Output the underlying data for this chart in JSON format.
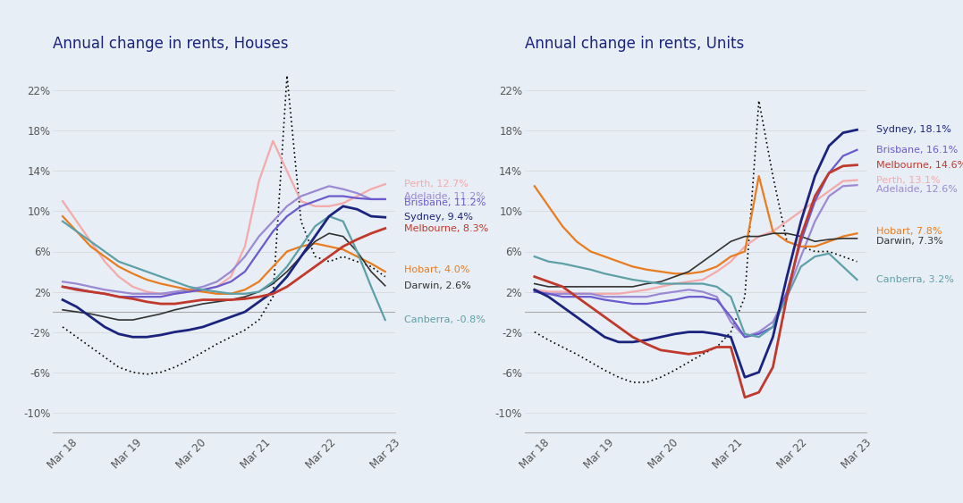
{
  "title_houses": "Annual change in rents, Houses",
  "title_units": "Annual change in rents, Units",
  "bg_color": "#e8eef5",
  "x_labels": [
    "Mar 18",
    "Mar 19",
    "Mar 20",
    "Mar 21",
    "Mar 22",
    "Mar 23"
  ],
  "yticks": [
    -10,
    -6,
    -2,
    2,
    6,
    10,
    14,
    18,
    22
  ],
  "ylim": [
    -12,
    25
  ],
  "colors": {
    "Sydney": "#1a237e",
    "Melbourne": "#c0392b",
    "Brisbane": "#6a5acd",
    "Adelaide": "#9b89d4",
    "Perth": "#f4aaaa",
    "Hobart": "#e87c1e",
    "Darwin": "#333333",
    "Canberra": "#5da0a8",
    "National": "#000000"
  },
  "houses": {
    "Sydney": [
      1.2,
      0.5,
      -0.5,
      -1.5,
      -2.2,
      -2.5,
      -2.5,
      -2.3,
      -2.0,
      -1.8,
      -1.5,
      -1.0,
      -0.5,
      0.0,
      1.0,
      2.0,
      3.5,
      5.5,
      7.5,
      9.5,
      10.5,
      10.2,
      9.5,
      9.4
    ],
    "Melbourne": [
      2.5,
      2.2,
      2.0,
      1.8,
      1.5,
      1.3,
      1.0,
      0.8,
      0.8,
      1.0,
      1.2,
      1.2,
      1.2,
      1.3,
      1.5,
      1.8,
      2.5,
      3.5,
      4.5,
      5.5,
      6.5,
      7.2,
      7.8,
      8.3
    ],
    "Brisbane": [
      2.5,
      2.3,
      2.0,
      1.8,
      1.5,
      1.5,
      1.5,
      1.5,
      1.8,
      2.0,
      2.2,
      2.5,
      3.0,
      4.0,
      6.0,
      8.0,
      9.5,
      10.5,
      11.0,
      11.5,
      11.5,
      11.3,
      11.2,
      11.2
    ],
    "Adelaide": [
      3.0,
      2.8,
      2.5,
      2.2,
      2.0,
      1.8,
      1.8,
      1.8,
      2.0,
      2.2,
      2.5,
      3.0,
      4.0,
      5.5,
      7.5,
      9.0,
      10.5,
      11.5,
      12.0,
      12.5,
      12.2,
      11.8,
      11.2,
      11.2
    ],
    "Perth": [
      11.0,
      9.0,
      7.0,
      5.0,
      3.5,
      2.5,
      2.0,
      1.8,
      1.8,
      2.0,
      2.2,
      2.5,
      3.5,
      6.5,
      13.0,
      17.0,
      14.0,
      11.0,
      10.5,
      10.5,
      10.8,
      11.5,
      12.2,
      12.7
    ],
    "Hobart": [
      9.5,
      8.0,
      6.5,
      5.5,
      4.5,
      3.8,
      3.2,
      2.8,
      2.5,
      2.2,
      2.0,
      1.8,
      1.8,
      2.2,
      3.0,
      4.5,
      6.0,
      6.5,
      6.8,
      6.5,
      6.2,
      5.5,
      4.8,
      4.0
    ],
    "Darwin": [
      0.2,
      0.0,
      -0.2,
      -0.5,
      -0.8,
      -0.8,
      -0.5,
      -0.2,
      0.2,
      0.5,
      0.8,
      1.0,
      1.2,
      1.5,
      2.0,
      2.8,
      4.0,
      5.5,
      7.0,
      7.8,
      7.5,
      6.0,
      4.0,
      2.6
    ],
    "Canberra": [
      9.0,
      8.0,
      7.0,
      6.0,
      5.0,
      4.5,
      4.0,
      3.5,
      3.0,
      2.5,
      2.2,
      2.0,
      1.8,
      1.8,
      2.0,
      3.0,
      4.5,
      6.5,
      8.5,
      9.5,
      9.0,
      6.0,
      2.5,
      -0.8
    ],
    "National": [
      -1.5,
      -2.5,
      -3.5,
      -4.5,
      -5.5,
      -6.0,
      -6.2,
      -6.0,
      -5.5,
      -4.8,
      -4.0,
      -3.2,
      -2.5,
      -1.8,
      -0.8,
      1.5,
      23.5,
      9.0,
      5.5,
      5.0,
      5.5,
      5.0,
      4.5,
      3.5
    ]
  },
  "units": {
    "Sydney": [
      2.2,
      1.5,
      0.5,
      -0.5,
      -1.5,
      -2.5,
      -3.0,
      -3.0,
      -2.8,
      -2.5,
      -2.2,
      -2.0,
      -2.0,
      -2.2,
      -2.5,
      -6.5,
      -6.0,
      -2.5,
      3.5,
      9.0,
      13.5,
      16.5,
      17.8,
      18.1
    ],
    "Melbourne": [
      3.5,
      3.0,
      2.5,
      1.5,
      0.5,
      -0.5,
      -1.5,
      -2.5,
      -3.2,
      -3.8,
      -4.0,
      -4.2,
      -4.0,
      -3.5,
      -3.5,
      -8.5,
      -8.0,
      -5.5,
      1.5,
      7.5,
      11.5,
      13.8,
      14.5,
      14.6
    ],
    "Brisbane": [
      2.0,
      1.8,
      1.5,
      1.5,
      1.5,
      1.2,
      1.0,
      0.8,
      0.8,
      1.0,
      1.2,
      1.5,
      1.5,
      1.2,
      -0.5,
      -2.5,
      -2.2,
      -1.5,
      2.0,
      7.0,
      11.0,
      13.8,
      15.5,
      16.1
    ],
    "Adelaide": [
      2.0,
      1.8,
      1.8,
      1.8,
      1.8,
      1.5,
      1.5,
      1.5,
      1.5,
      1.8,
      2.0,
      2.2,
      2.0,
      1.5,
      -1.0,
      -2.5,
      -2.0,
      -1.0,
      1.8,
      5.5,
      9.0,
      11.5,
      12.5,
      12.6
    ],
    "Perth": [
      2.2,
      2.0,
      2.0,
      1.8,
      1.8,
      1.8,
      1.8,
      2.0,
      2.2,
      2.5,
      2.8,
      3.0,
      3.2,
      4.0,
      5.0,
      6.5,
      7.5,
      8.0,
      9.0,
      10.0,
      11.0,
      12.0,
      13.0,
      13.1
    ],
    "Hobart": [
      12.5,
      10.5,
      8.5,
      7.0,
      6.0,
      5.5,
      5.0,
      4.5,
      4.2,
      4.0,
      3.8,
      3.8,
      4.0,
      4.5,
      5.5,
      6.0,
      13.5,
      8.0,
      7.0,
      6.5,
      6.5,
      7.0,
      7.5,
      7.8
    ],
    "Darwin": [
      2.8,
      2.5,
      2.5,
      2.5,
      2.5,
      2.5,
      2.5,
      2.5,
      2.8,
      3.0,
      3.5,
      4.0,
      5.0,
      6.0,
      7.0,
      7.5,
      7.5,
      7.8,
      7.8,
      7.5,
      7.0,
      7.2,
      7.3,
      7.3
    ],
    "Canberra": [
      5.5,
      5.0,
      4.8,
      4.5,
      4.2,
      3.8,
      3.5,
      3.2,
      3.0,
      2.8,
      2.8,
      2.8,
      2.8,
      2.5,
      1.5,
      -2.2,
      -2.5,
      -1.5,
      1.5,
      4.5,
      5.5,
      5.8,
      4.5,
      3.2
    ],
    "National": [
      -2.0,
      -2.8,
      -3.5,
      -4.2,
      -5.0,
      -5.8,
      -6.5,
      -7.0,
      -7.0,
      -6.5,
      -5.8,
      -5.0,
      -4.2,
      -3.5,
      -2.0,
      1.5,
      21.0,
      13.5,
      7.0,
      6.5,
      6.0,
      6.0,
      5.5,
      5.0
    ]
  },
  "houses_labels": [
    {
      "text": "Perth, 12.7%",
      "color": "#f4aaaa",
      "y": 12.7
    },
    {
      "text": "Adelaide, 11.2%",
      "color": "#9b89d4",
      "y": 11.5
    },
    {
      "text": "Brisbane, 11.2%",
      "color": "#6a5acd",
      "y": 10.8
    },
    {
      "text": "Sydney, 9.4%",
      "color": "#1a237e",
      "y": 9.4
    },
    {
      "text": "Melbourne, 8.3%",
      "color": "#c0392b",
      "y": 8.3
    },
    {
      "text": "Hobart, 4.0%",
      "color": "#e87c1e",
      "y": 4.2
    },
    {
      "text": "Darwin, 2.6%",
      "color": "#333333",
      "y": 2.6
    },
    {
      "text": "Canberra, -0.8%",
      "color": "#5da0a8",
      "y": -0.8
    }
  ],
  "units_labels": [
    {
      "text": "Sydney, 18.1%",
      "color": "#1a237e",
      "y": 18.1
    },
    {
      "text": "Brisbane, 16.1%",
      "color": "#6a5acd",
      "y": 16.1
    },
    {
      "text": "Melbourne, 14.6%",
      "color": "#c0392b",
      "y": 14.6
    },
    {
      "text": "Perth, 13.1%",
      "color": "#f4aaaa",
      "y": 13.1
    },
    {
      "text": "Adelaide, 12.6%",
      "color": "#9b89d4",
      "y": 12.2
    },
    {
      "text": "Hobart, 7.8%",
      "color": "#e87c1e",
      "y": 8.0
    },
    {
      "text": "Darwin, 7.3%",
      "color": "#333333",
      "y": 7.0
    },
    {
      "text": "Canberra, 3.2%",
      "color": "#5da0a8",
      "y": 3.2
    }
  ]
}
